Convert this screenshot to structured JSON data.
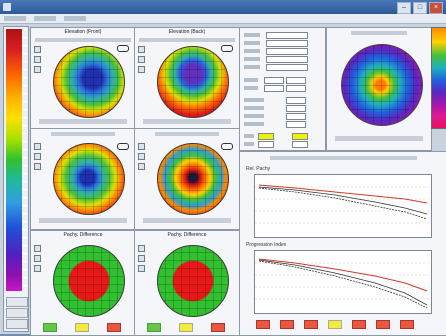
{
  "window": {
    "title": ""
  },
  "maps": {
    "top_left": {
      "title": "Elevation (Front)"
    },
    "top_right": {
      "title": "Elevation (Back)"
    },
    "bottom_left": {
      "title": "Pachy. Difference"
    },
    "bottom_right": {
      "title": "Pachy. Difference"
    }
  },
  "graphs": {
    "upper": {
      "title": "Rel. Pachy"
    },
    "lower": {
      "title": "Progression Index"
    }
  },
  "legend": {
    "colors": [
      "#b01010",
      "#ff6a00",
      "#ffe000",
      "#30c030",
      "#30a0e0",
      "#2050d8",
      "#9010b0"
    ]
  }
}
